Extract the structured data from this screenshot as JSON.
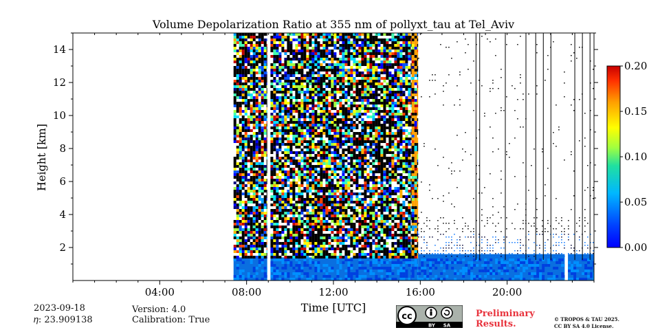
{
  "chart_data": {
    "type": "heatmap",
    "title": "Volume Depolarization Ratio at 355 nm of pollyxt_tau at Tel_Aviv",
    "xlabel": "Time [UTC]",
    "ylabel": "Height [km]",
    "x_ticks": [
      "04:00",
      "08:00",
      "12:00",
      "16:00",
      "20:00"
    ],
    "x_tick_hours": [
      4,
      8,
      12,
      16,
      20
    ],
    "x_range_hours": [
      0,
      24
    ],
    "y_ticks": [
      "2",
      "4",
      "6",
      "8",
      "10",
      "12",
      "14"
    ],
    "y_tick_values": [
      2,
      4,
      6,
      8,
      10,
      12,
      14
    ],
    "y_range_km": [
      0,
      15
    ],
    "colorbar": {
      "ticks": [
        "0.00",
        "0.05",
        "0.10",
        "0.15",
        "0.20"
      ],
      "tick_values": [
        0.0,
        0.05,
        0.1,
        0.15,
        0.2
      ],
      "range": [
        0.0,
        0.2
      ],
      "colormap": "jet"
    },
    "data_segments": [
      {
        "start_hour": 7.4,
        "end_hour": 8.95,
        "regime": "noisy"
      },
      {
        "start_hour": 9.1,
        "end_hour": 15.6,
        "regime": "noisy"
      },
      {
        "start_hour": 15.6,
        "end_hour": 15.9,
        "regime": "noisy-high"
      },
      {
        "start_hour": 15.9,
        "end_hour": 22.65,
        "regime": "sparse"
      },
      {
        "start_hour": 22.8,
        "end_hour": 24.0,
        "regime": "sparse"
      }
    ],
    "data_gaps_hours": [
      [
        0,
        7.4
      ],
      [
        8.95,
        9.1
      ],
      [
        22.65,
        22.8
      ]
    ]
  },
  "footer": {
    "date": "2023-09-18",
    "eta": "𝜂: 23.909138",
    "version": "Version: 4.0",
    "calibration": "Calibration: True",
    "prelim_line1": "Preliminary",
    "prelim_line2": "Results.",
    "copyright_line1": "© TROPOS & TAU 2025.",
    "copyright_line2": "CC BY SA 4.0 License.",
    "cc_by": "BY",
    "cc_sa": "SA",
    "cc": "cc"
  }
}
